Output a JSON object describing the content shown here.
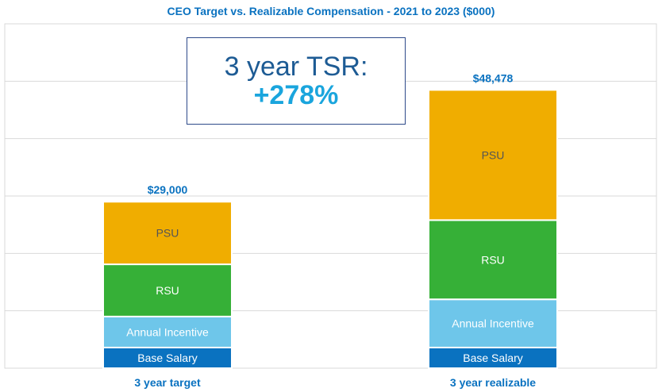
{
  "chart_data": {
    "type": "bar",
    "stacked": true,
    "title": "CEO Target vs. Realizable Compensation - 2021 to 2023 ($000)",
    "xlabel": "",
    "ylabel": "",
    "ylim": [
      0,
      60000
    ],
    "grid": true,
    "categories": [
      "3 year target",
      "3 year realizable"
    ],
    "totals": [
      "$29,000",
      "$48,478"
    ],
    "total_values": [
      29000,
      48478
    ],
    "series": [
      {
        "name": "Base Salary",
        "values": [
          3600,
          3600
        ],
        "color": "#0a72c0",
        "text_color": "#ffffff"
      },
      {
        "name": "Annual Incentive",
        "values": [
          5400,
          8400
        ],
        "color": "#6ec6ea",
        "text_color": "#ffffff"
      },
      {
        "name": "RSU",
        "values": [
          9100,
          13800
        ],
        "color": "#36b037",
        "text_color": "#ffffff"
      },
      {
        "name": "PSU",
        "values": [
          10900,
          22678
        ],
        "color": "#f0ad00",
        "text_color": "#555555"
      }
    ],
    "annotation": {
      "line1": "3 year TSR:",
      "line2": "+278%"
    }
  }
}
